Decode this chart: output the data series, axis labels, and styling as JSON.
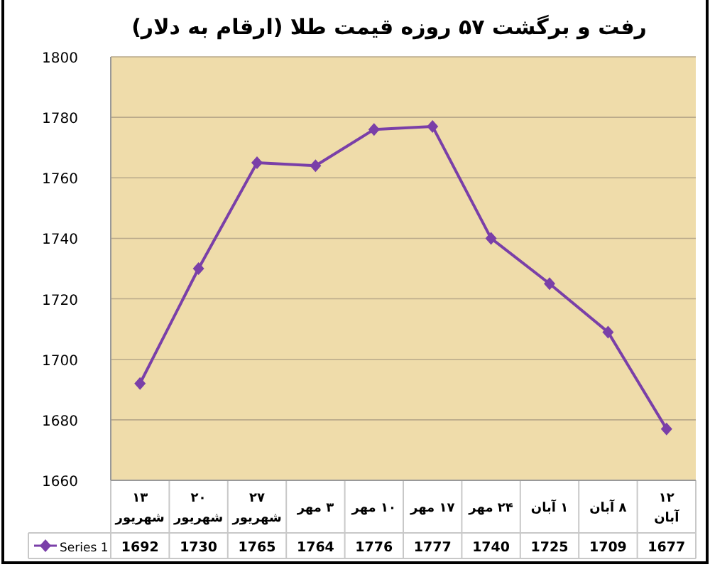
{
  "chart_data": {
    "type": "line",
    "title": "رفت و برگشت ۵۷ روزه قیمت طلا (ارقام به دلار)",
    "categories": [
      "۱۳ شهریور",
      "۲۰ شهریور",
      "۲۷ شهریور",
      "۳ مهر",
      "۱۰ مهر",
      "۱۷ مهر",
      "۲۴ مهر",
      "۱ آبان",
      "۸ آبان",
      "۱۲ آبان"
    ],
    "series": [
      {
        "name": "Series 1",
        "color": "#7a3fa8",
        "values": [
          1692,
          1730,
          1765,
          1764,
          1776,
          1777,
          1740,
          1725,
          1709,
          1677
        ]
      }
    ],
    "ylim": [
      1660,
      1800
    ],
    "yticks": [
      1660,
      1680,
      1700,
      1720,
      1740,
      1760,
      1780,
      1800
    ],
    "grid": "y",
    "marker": "diamond",
    "line_style": "solid",
    "data_labels": true,
    "legend": "bottom left"
  }
}
